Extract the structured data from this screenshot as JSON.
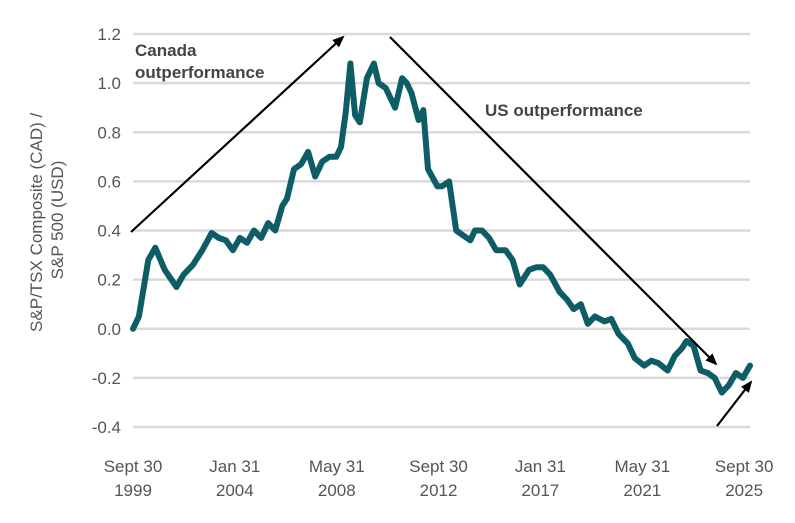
{
  "chart_data": {
    "type": "line",
    "title": "",
    "xlabel": "",
    "ylabel": "S&P/TSX Composite (CAD) / S&P 500 (USD)",
    "ylabel_lines": [
      "S&P/TSX Composite (CAD) /",
      "S&P 500 (USD)"
    ],
    "ylim": [
      -0.4,
      1.2
    ],
    "yticks": [
      1.2,
      1.0,
      0.8,
      0.6,
      0.4,
      0.2,
      0.0,
      -0.2,
      -0.4
    ],
    "ytick_labels": [
      "1.2",
      "1.0",
      "0.8",
      "0.6",
      "0.4",
      "0.2",
      "0.0",
      "-0.2",
      "-0.4"
    ],
    "xlim": [
      1999.75,
      2026.0
    ],
    "xticks": [
      {
        "value": 1999.75,
        "line1": "Sept 30",
        "line2": "1999"
      },
      {
        "value": 2004.08,
        "line1": "Jan 31",
        "line2": "2004"
      },
      {
        "value": 2008.42,
        "line1": "May 31",
        "line2": "2008"
      },
      {
        "value": 2012.75,
        "line1": "Sept 30",
        "line2": "2012"
      },
      {
        "value": 2017.08,
        "line1": "Jan 31",
        "line2": "2017"
      },
      {
        "value": 2021.42,
        "line1": "May 31",
        "line2": "2021"
      },
      {
        "value": 2025.75,
        "line1": "Sept 30",
        "line2": "2025"
      }
    ],
    "grid": true,
    "color": "#0e5c66",
    "series": [
      {
        "name": "S&P/TSX Composite (CAD) / S&P 500 (USD)",
        "x": [
          1999.75,
          2000.0,
          2000.4,
          2000.7,
          2001.1,
          2001.6,
          2001.9,
          2002.3,
          2002.7,
          2003.1,
          2003.4,
          2003.7,
          2004.0,
          2004.3,
          2004.6,
          2004.9,
          2005.2,
          2005.5,
          2005.8,
          2006.1,
          2006.3,
          2006.6,
          2006.9,
          2007.2,
          2007.5,
          2007.8,
          2008.1,
          2008.2,
          2008.4,
          2008.6,
          2008.8,
          2009.0,
          2009.2,
          2009.4,
          2009.7,
          2010.0,
          2010.2,
          2010.5,
          2010.9,
          2011.2,
          2011.4,
          2011.6,
          2011.9,
          2012.1,
          2012.3,
          2012.7,
          2012.9,
          2013.2,
          2013.5,
          2013.8,
          2014.1,
          2014.3,
          2014.6,
          2014.9,
          2015.2,
          2015.6,
          2015.9,
          2016.2,
          2016.6,
          2016.9,
          2017.2,
          2017.5,
          2017.9,
          2018.2,
          2018.5,
          2018.8,
          2019.1,
          2019.4,
          2019.8,
          2020.1,
          2020.4,
          2020.8,
          2021.1,
          2021.5,
          2021.8,
          2022.1,
          2022.5,
          2022.8,
          2023.1,
          2023.3,
          2023.6,
          2023.9,
          2024.2,
          2024.5,
          2024.8,
          2025.1,
          2025.4,
          2025.7,
          2026.0
        ],
        "values": [
          0.0,
          0.05,
          0.28,
          0.33,
          0.24,
          0.17,
          0.22,
          0.26,
          0.32,
          0.39,
          0.37,
          0.36,
          0.32,
          0.37,
          0.35,
          0.4,
          0.37,
          0.43,
          0.4,
          0.5,
          0.53,
          0.65,
          0.67,
          0.72,
          0.62,
          0.68,
          0.7,
          0.7,
          0.7,
          0.74,
          0.88,
          1.08,
          0.87,
          0.84,
          1.02,
          1.08,
          1.0,
          0.98,
          0.9,
          1.02,
          1.0,
          0.96,
          0.85,
          0.89,
          0.65,
          0.58,
          0.58,
          0.6,
          0.4,
          0.38,
          0.36,
          0.4,
          0.4,
          0.37,
          0.32,
          0.32,
          0.28,
          0.18,
          0.24,
          0.25,
          0.25,
          0.22,
          0.15,
          0.12,
          0.08,
          0.1,
          0.02,
          0.05,
          0.03,
          0.04,
          -0.02,
          -0.06,
          -0.12,
          -0.15,
          -0.13,
          -0.14,
          -0.17,
          -0.11,
          -0.08,
          -0.05,
          -0.07,
          -0.17,
          -0.18,
          -0.2,
          -0.26,
          -0.23,
          -0.18,
          -0.2,
          -0.15
        ]
      }
    ],
    "annotations": [
      {
        "lines": [
          "Canada",
          "outperformance"
        ]
      },
      {
        "lines": [
          "US outperformance"
        ]
      }
    ]
  }
}
